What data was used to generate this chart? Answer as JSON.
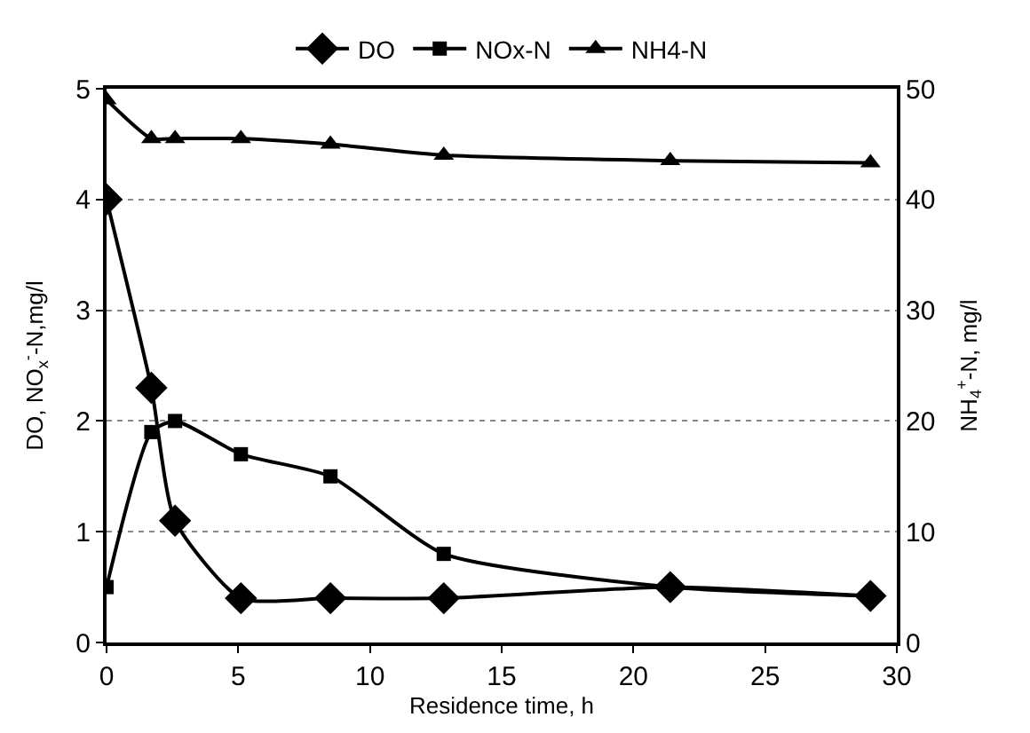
{
  "chart_data": {
    "type": "line",
    "xlabel": "Residence time, h",
    "ylabel": "DO, NO$_{x}$$^{-}$-N,mg/l",
    "y2label": "NH$_{4}$$^{+}$-N, mg/l",
    "x": [
      0,
      1.7,
      2.6,
      5.1,
      8.5,
      12.8,
      21.4,
      29
    ],
    "series": [
      {
        "name": "DO",
        "color": "#000000",
        "marker": "diamond",
        "values": [
          4,
          2.3,
          1.1,
          0.4,
          0.4,
          0.4,
          0.5,
          0.42
        ]
      },
      {
        "name": "NOx-N",
        "color": "#000000",
        "marker": "square",
        "values": [
          0.5,
          1.9,
          2.0,
          1.7,
          1.5,
          0.8,
          0.5,
          0.42
        ]
      },
      {
        "name": "NH4-N",
        "color": "#000000",
        "marker": "triangle",
        "axis": "y2",
        "values": [
          49,
          45.5,
          45.5,
          45.5,
          45,
          44,
          43.5,
          43.3
        ]
      }
    ],
    "xlim": [
      0,
      30
    ],
    "xticks": [
      0,
      5,
      10,
      15,
      20,
      25,
      30
    ],
    "ylim": [
      0,
      5
    ],
    "yticks": [
      0,
      1,
      2,
      3,
      4,
      5
    ],
    "y2lim": [
      0,
      50
    ],
    "y2ticks": [
      0,
      10,
      20,
      30,
      40,
      50
    ],
    "grid": "y",
    "legend": "top",
    "line_style": "solid"
  }
}
